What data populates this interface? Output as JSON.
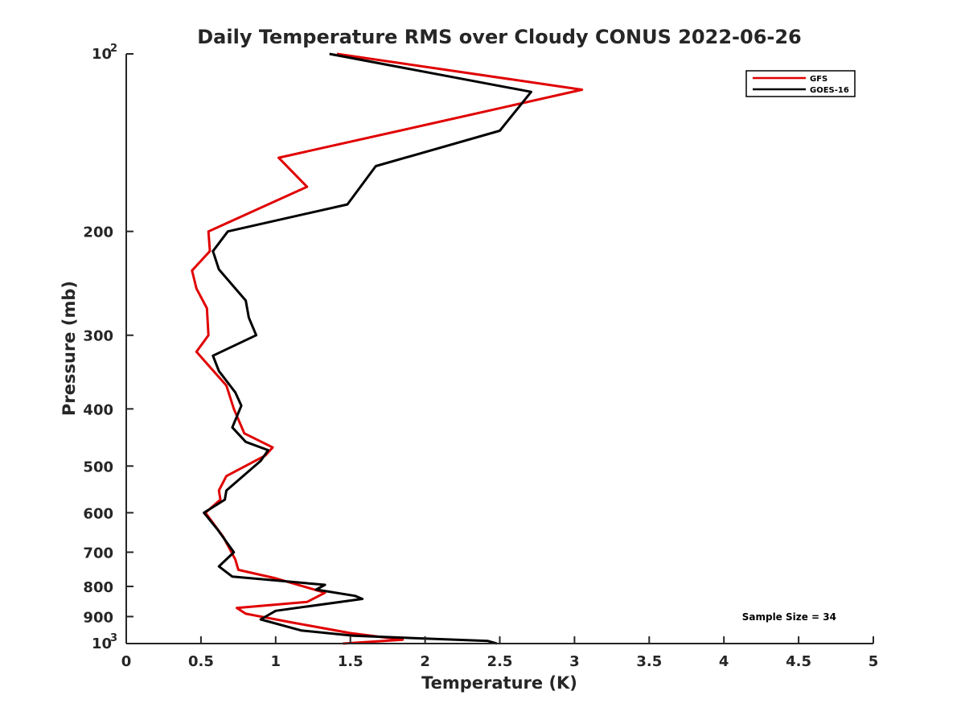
{
  "chart_data": {
    "type": "line",
    "title": "Daily Temperature RMS over Cloudy CONUS 2022-06-26",
    "xlabel": "Temperature (K)",
    "ylabel": "Pressure (mb)",
    "xlim": [
      0,
      5
    ],
    "ylim": [
      100,
      1000
    ],
    "y_scale": "log",
    "y_reversed": true,
    "x_ticks": [
      0,
      0.5,
      1,
      1.5,
      2,
      2.5,
      3,
      3.5,
      4,
      4.5,
      5
    ],
    "x_tick_labels": [
      "0",
      "0.5",
      "1",
      "1.5",
      "2",
      "2.5",
      "3",
      "3.5",
      "4",
      "4.5",
      "5"
    ],
    "y_ticks": [
      {
        "value": 100,
        "label": "10",
        "sup": "2"
      },
      {
        "value": 200,
        "label": "200",
        "sup": ""
      },
      {
        "value": 300,
        "label": "300",
        "sup": ""
      },
      {
        "value": 400,
        "label": "400",
        "sup": ""
      },
      {
        "value": 500,
        "label": "500",
        "sup": ""
      },
      {
        "value": 600,
        "label": "600",
        "sup": ""
      },
      {
        "value": 700,
        "label": "700",
        "sup": ""
      },
      {
        "value": 800,
        "label": "800",
        "sup": ""
      },
      {
        "value": 900,
        "label": "900",
        "sup": ""
      },
      {
        "value": 1000,
        "label": "10",
        "sup": "3"
      }
    ],
    "grid": false,
    "legend_position": "top-right",
    "annotation": "Sample Size = 34",
    "series": [
      {
        "name": "GFS",
        "color": "#e00000",
        "points": [
          [
            1.41,
            100
          ],
          [
            3.05,
            115
          ],
          [
            2.0,
            132
          ],
          [
            1.02,
            150
          ],
          [
            1.21,
            168
          ],
          [
            0.55,
            200
          ],
          [
            0.56,
            216
          ],
          [
            0.44,
            233
          ],
          [
            0.47,
            250
          ],
          [
            0.54,
            270
          ],
          [
            0.55,
            300
          ],
          [
            0.47,
            320
          ],
          [
            0.67,
            365
          ],
          [
            0.72,
            400
          ],
          [
            0.79,
            440
          ],
          [
            0.98,
            465
          ],
          [
            0.93,
            480
          ],
          [
            0.67,
            520
          ],
          [
            0.62,
            550
          ],
          [
            0.63,
            570
          ],
          [
            0.53,
            600
          ],
          [
            0.65,
            660
          ],
          [
            0.73,
            720
          ],
          [
            0.75,
            750
          ],
          [
            1.0,
            775
          ],
          [
            1.33,
            820
          ],
          [
            1.21,
            850
          ],
          [
            0.74,
            870
          ],
          [
            0.8,
            890
          ],
          [
            1.1,
            920
          ],
          [
            1.5,
            960
          ],
          [
            1.85,
            985
          ],
          [
            1.45,
            1000
          ]
        ]
      },
      {
        "name": "GOES-16",
        "color": "#000000",
        "points": [
          [
            1.36,
            100
          ],
          [
            2.71,
            116
          ],
          [
            2.5,
            135
          ],
          [
            1.67,
            155
          ],
          [
            1.48,
            180
          ],
          [
            0.68,
            200
          ],
          [
            0.58,
            216
          ],
          [
            0.62,
            232
          ],
          [
            0.8,
            262
          ],
          [
            0.82,
            280
          ],
          [
            0.87,
            300
          ],
          [
            0.58,
            325
          ],
          [
            0.62,
            345
          ],
          [
            0.73,
            375
          ],
          [
            0.77,
            395
          ],
          [
            0.71,
            430
          ],
          [
            0.8,
            455
          ],
          [
            0.95,
            470
          ],
          [
            0.9,
            490
          ],
          [
            0.67,
            550
          ],
          [
            0.66,
            570
          ],
          [
            0.52,
            600
          ],
          [
            0.61,
            640
          ],
          [
            0.72,
            700
          ],
          [
            0.62,
            740
          ],
          [
            0.71,
            770
          ],
          [
            1.33,
            795
          ],
          [
            1.27,
            810
          ],
          [
            1.53,
            830
          ],
          [
            1.58,
            840
          ],
          [
            1.0,
            880
          ],
          [
            0.9,
            910
          ],
          [
            1.17,
            950
          ],
          [
            1.52,
            970
          ],
          [
            2.42,
            990
          ],
          [
            2.48,
            1000
          ]
        ]
      }
    ]
  }
}
